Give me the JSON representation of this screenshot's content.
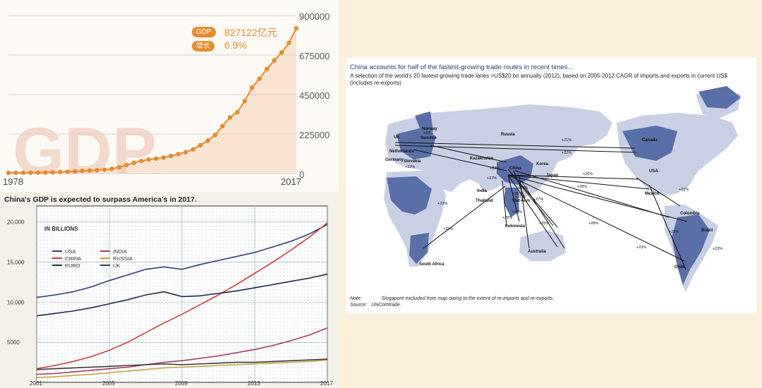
{
  "background_color": "#fbf0dc",
  "gdp_panel": {
    "watermark": "GDP",
    "badge1_label": "GDP",
    "badge1_value": "827122亿元",
    "badge2_label": "增长",
    "badge2_value": "6.9%",
    "accent_color": "#e58a2e"
  },
  "projection_panel": {
    "title": "China's GDP is expected to surpass America's in 2017.",
    "unit_label": "IN BILLIONS",
    "line_colors": {
      "USA": "#2e3e6e",
      "CHINA": "#c93a3a",
      "EURO": "#1f2a44",
      "INDIA": "#a83a5a",
      "RUSSIA": "#c8a43a",
      "UK": "#3a3a3a"
    }
  },
  "map_panel": {
    "title": "China accounts for half of the fastest-growing trade routes in recent times...",
    "subtitle": "A selection of the world's 20 fastest-growing trade lanes >US$20 bn annually (2012), based on 2005-2012 CAGR of imports and exports in current US$ (includes re-exports)",
    "note_label": "Note:",
    "note_text": "Singapore excluded from map owing to the extent of re-imports and re-exports.",
    "source_label": "Source:",
    "source_text": "UNComtrade.",
    "country_labels": [
      "Norway",
      "Sweden",
      "UK",
      "Russia",
      "Netherlands",
      "Germany",
      "Slovakia",
      "Kazakhstan",
      "Canada",
      "Korea",
      "China",
      "Japan",
      "USA",
      "India",
      "Thailand",
      "Viet-nam",
      "Indonesia",
      "Mexico",
      "Colombia",
      "Brazil",
      "Australia",
      "South Africa",
      "Chile"
    ],
    "growth_labels": [
      "+22%",
      "+21%",
      "+22%",
      "+22%",
      "+23%",
      "+26%",
      "+27%",
      "+29%",
      "+28%",
      "+31%",
      "+27%",
      "+28%",
      "+29%",
      "+27%",
      "+25%",
      "+28%",
      "+23%",
      "+23%",
      "+31%",
      "+23%",
      "+23%",
      "+23%"
    ]
  },
  "chart_data": [
    {
      "type": "line",
      "xlabel": "",
      "ylabel": "",
      "x_tick_labels": [
        "1978",
        "2017"
      ],
      "ylim": [
        0,
        900000
      ],
      "y_ticks": [
        0,
        225000,
        450000,
        675000,
        900000
      ],
      "grid": true,
      "series": [
        {
          "x": [
            1978,
            1979,
            1980,
            1981,
            1982,
            1983,
            1984,
            1985,
            1986,
            1987,
            1988,
            1989,
            1990,
            1991,
            1992,
            1993,
            1994,
            1995,
            1996,
            1997,
            1998,
            1999,
            2000,
            2001,
            2002,
            2003,
            2004,
            2005,
            2006,
            2007,
            2008,
            2009,
            2010,
            2011,
            2012,
            2013,
            2014,
            2015,
            2016,
            2017
          ],
          "values": [
            3679,
            4101,
            4588,
            4936,
            5373,
            6021,
            7279,
            9099,
            10376,
            12175,
            15180,
            17180,
            18873,
            22006,
            27195,
            35673,
            48638,
            61340,
            71814,
            79715,
            85196,
            90564,
            100280,
            110863,
            121717,
            137422,
            161840,
            187319,
            219439,
            270232,
            319516,
            349081,
            413030,
            489301,
            540367,
            595244,
            643974,
            689052,
            744127,
            827122
          ]
        }
      ]
    },
    {
      "type": "line",
      "title": "China's GDP is expected to surpass America's in 2017.",
      "ylabel": "IN BILLIONS",
      "x_tick_labels": [
        "2001",
        "2005",
        "2009",
        "2013",
        "2017"
      ],
      "y_tick_labels": [
        "5000",
        "10,000",
        "15,000",
        "20,000"
      ],
      "ylim": [
        0,
        22000
      ],
      "legend": "top-left",
      "categories": [
        2001,
        2002,
        2003,
        2004,
        2005,
        2006,
        2007,
        2008,
        2009,
        2010,
        2011,
        2012,
        2013,
        2014,
        2015,
        2016,
        2017
      ],
      "series": [
        {
          "name": "USA",
          "values": [
            10600,
            10900,
            11300,
            11900,
            12700,
            13400,
            14100,
            14400,
            14100,
            14700,
            15200,
            15700,
            16200,
            16900,
            17600,
            18500,
            19700
          ]
        },
        {
          "name": "CHINA",
          "values": [
            1700,
            2100,
            2600,
            3200,
            4000,
            5000,
            6200,
            7400,
            8500,
            9700,
            10900,
            12200,
            13600,
            15000,
            16500,
            18100,
            19900
          ]
        },
        {
          "name": "EURO",
          "values": [
            8300,
            8600,
            8900,
            9300,
            9800,
            10300,
            10900,
            11300,
            10700,
            10800,
            11100,
            11400,
            11800,
            12200,
            12600,
            13000,
            13500
          ]
        },
        {
          "name": "INDIA",
          "values": [
            1000,
            1100,
            1300,
            1500,
            1700,
            1900,
            2200,
            2500,
            2700,
            3000,
            3300,
            3700,
            4100,
            4600,
            5200,
            5900,
            6800
          ]
        },
        {
          "name": "RUSSIA",
          "values": [
            600,
            700,
            850,
            1000,
            1200,
            1400,
            1600,
            1800,
            1900,
            2000,
            2100,
            2200,
            2300,
            2400,
            2500,
            2600,
            2800
          ]
        },
        {
          "name": "UK",
          "values": [
            1600,
            1700,
            1800,
            1900,
            2000,
            2100,
            2200,
            2300,
            2200,
            2300,
            2400,
            2500,
            2500,
            2600,
            2700,
            2800,
            2900
          ]
        }
      ]
    }
  ]
}
